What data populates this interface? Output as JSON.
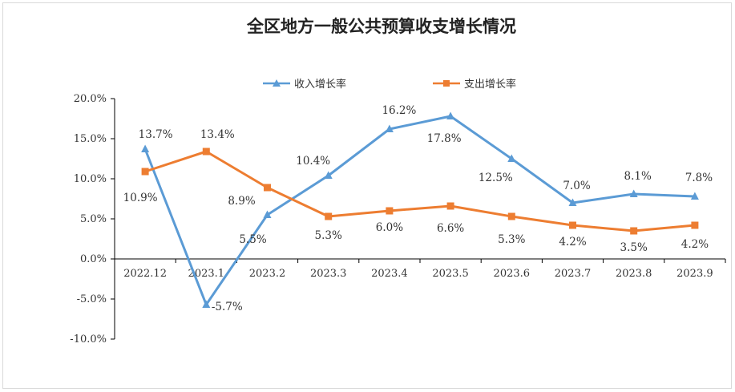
{
  "chart_data": {
    "type": "line",
    "title": "全区地方一般公共预算收支增长情况",
    "categories": [
      "2022.12",
      "2023.1",
      "2023.2",
      "2023.3",
      "2023.4",
      "2023.5",
      "2023.6",
      "2023.7",
      "2023.8",
      "2023.9"
    ],
    "series": [
      {
        "name": "收入增长率",
        "color": "#5b9bd5",
        "marker": "triangle",
        "values": [
          13.7,
          -5.7,
          5.5,
          10.4,
          16.2,
          17.8,
          12.5,
          7.0,
          8.1,
          7.8
        ],
        "labels": [
          "13.7%",
          "-5.7%",
          "5.5%",
          "10.4%",
          "16.2%",
          "17.8%",
          "12.5%",
          "7.0%",
          "8.1%",
          "7.8%"
        ]
      },
      {
        "name": "支出增长率",
        "color": "#ed7d31",
        "marker": "square",
        "values": [
          10.9,
          13.4,
          8.9,
          5.3,
          6.0,
          6.6,
          5.3,
          4.2,
          3.5,
          4.2
        ],
        "labels": [
          "10.9%",
          "13.4%",
          "8.9%",
          "5.3%",
          "6.0%",
          "6.6%",
          "5.3%",
          "4.2%",
          "3.5%",
          "4.2%"
        ]
      }
    ],
    "ylim": [
      -10,
      20
    ],
    "yticks": [
      "20.0%",
      "15.0%",
      "10.0%",
      "5.0%",
      "0.0%",
      "-5.0%",
      "-10.0%"
    ],
    "ytick_values": [
      20,
      15,
      10,
      5,
      0,
      -5,
      -10
    ],
    "xlabel": "",
    "ylabel": "",
    "legend_position": "top-center",
    "grid": false
  }
}
